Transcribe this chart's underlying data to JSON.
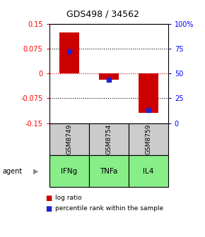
{
  "title": "GDS498 / 34562",
  "samples": [
    "GSM8749",
    "GSM8754",
    "GSM8759"
  ],
  "agents": [
    "IFNg",
    "TNFa",
    "IL4"
  ],
  "log_ratios": [
    0.123,
    -0.018,
    -0.118
  ],
  "percentile_ranks": [
    72,
    44,
    13
  ],
  "ylim_left": [
    -0.15,
    0.15
  ],
  "ylim_right": [
    0,
    100
  ],
  "left_ticks": [
    -0.15,
    -0.075,
    0,
    0.075,
    0.15
  ],
  "right_ticks": [
    0,
    25,
    50,
    75,
    100
  ],
  "bar_color": "#cc0000",
  "dot_color": "#2222cc",
  "zero_line_color": "#cc0000",
  "sample_box_color": "#cccccc",
  "agent_box_color": "#88ee88",
  "title_fontsize": 9,
  "tick_fontsize": 7,
  "label_fontsize": 7,
  "bar_width": 0.5,
  "dot_size": 25
}
